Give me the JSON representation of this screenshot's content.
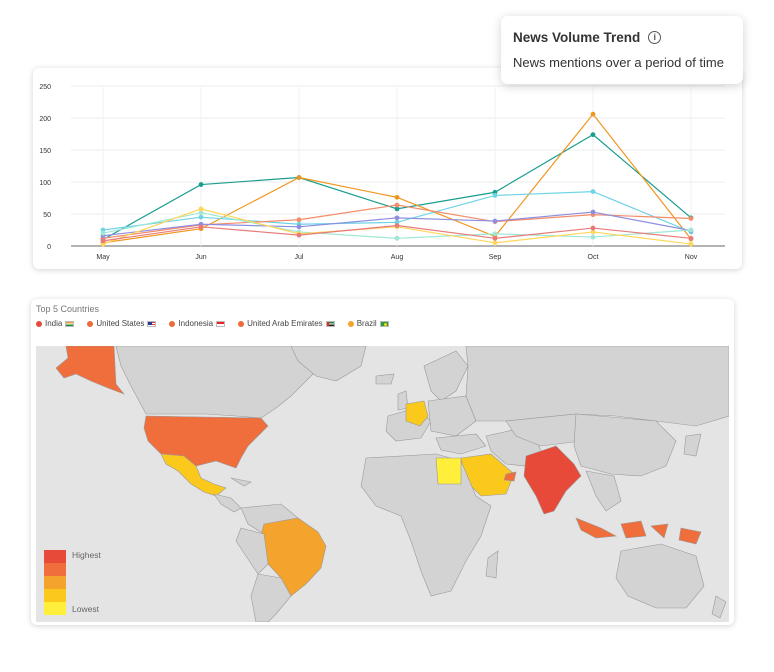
{
  "tooltip": {
    "title": "News Volume Trend",
    "subtitle": "News mentions over a period of time",
    "info_icon": "info-circle-icon"
  },
  "chart_data": {
    "type": "line",
    "categories": [
      "May",
      "Jun",
      "Jul",
      "Aug",
      "Sep",
      "Oct",
      "Nov"
    ],
    "ylim": [
      0,
      250
    ],
    "yticks": [
      0,
      50,
      100,
      150,
      200,
      250
    ],
    "grid": true,
    "series": [
      {
        "color": "#1a9e8f",
        "values": [
          10,
          96,
          107,
          58,
          84,
          174,
          44
        ]
      },
      {
        "color": "#f0961e",
        "values": [
          5,
          27,
          107,
          76,
          15,
          206,
          11
        ]
      },
      {
        "color": "#6ed3e6",
        "values": [
          25,
          45,
          34,
          37,
          79,
          85,
          22
        ]
      },
      {
        "color": "#f48c6a",
        "values": [
          12,
          33,
          41,
          64,
          38,
          49,
          43
        ]
      },
      {
        "color": "#8e8ee0",
        "values": [
          16,
          34,
          30,
          44,
          39,
          53,
          24
        ]
      },
      {
        "color": "#9ee7d4",
        "values": [
          20,
          52,
          22,
          12,
          19,
          14,
          25
        ]
      },
      {
        "color": "#ffd65a",
        "values": [
          3,
          58,
          19,
          30,
          5,
          22,
          3
        ]
      },
      {
        "color": "#e87a7a",
        "values": [
          8,
          30,
          17,
          32,
          12,
          28,
          12
        ]
      }
    ]
  },
  "map": {
    "title": "Top 5 Countries",
    "legend": [
      {
        "label": "India",
        "color": "#e84a3a",
        "flag": "india-flag-icon"
      },
      {
        "label": "United States",
        "color": "#ee6a38",
        "flag": "us-flag-icon"
      },
      {
        "label": "Indonesia",
        "color": "#ee6a38",
        "flag": "indonesia-flag-icon"
      },
      {
        "label": "United Arab Emirates",
        "color": "#ee6a38",
        "flag": "uae-flag-icon"
      },
      {
        "label": "Brazil",
        "color": "#f4a32c",
        "flag": "brazil-flag-icon"
      }
    ],
    "scale": {
      "highest": "Highest",
      "lowest": "Lowest",
      "colors": [
        "#e84a3a",
        "#ef6e3b",
        "#f4a32c",
        "#fbc81c",
        "#ffee3a"
      ]
    }
  }
}
